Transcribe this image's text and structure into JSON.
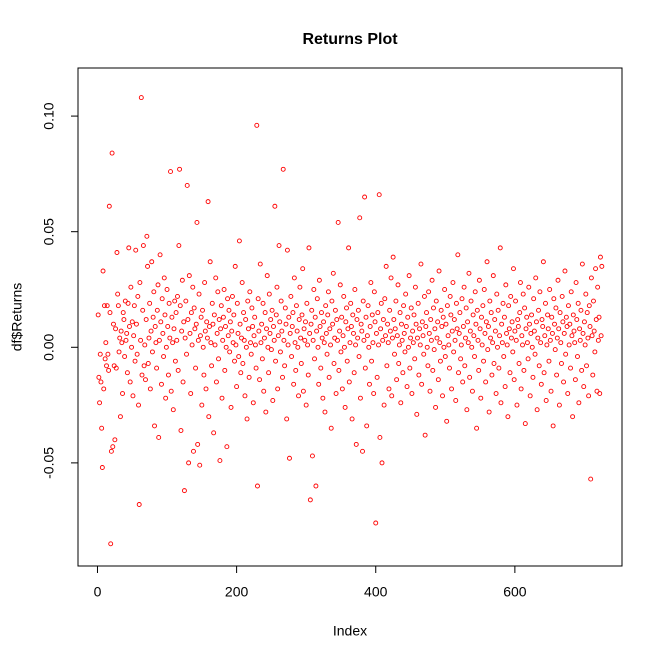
{
  "chart_data": {
    "type": "scatter",
    "title": "Returns Plot",
    "x_label": "Index",
    "y_label": "df$Returns",
    "color": "#ff0000",
    "xlim": [
      -28,
      754
    ],
    "ylim": [
      -0.0946,
      0.1208
    ],
    "xticks": [
      0,
      200,
      400,
      600
    ],
    "yticks": [
      {
        "value": -0.05,
        "label": "-0.05"
      },
      {
        "value": 0,
        "label": "0.00"
      },
      {
        "value": 0.05,
        "label": "0.05"
      },
      {
        "value": 0.1,
        "label": "0.10"
      }
    ],
    "values": [
      0.014,
      -0.013,
      -0.024,
      -0.003,
      -0.015,
      -0.035,
      -0.052,
      0.033,
      -0.018,
      0.018,
      -0.005,
      0.002,
      -0.008,
      0.018,
      -0.003,
      -0.01,
      0.061,
      0.015,
      -0.085,
      -0.045,
      0.084,
      -0.043,
      0.01,
      -0.008,
      -0.04,
      0.008,
      -0.009,
      0.041,
      0.023,
      0.018,
      -0.002,
      0.004,
      -0.03,
      0.007,
      0.002,
      -0.02,
      0.015,
      0.012,
      -0.004,
      0.02,
      0.003,
      0.006,
      -0.011,
      0.019,
      0.043,
      0.009,
      -0.015,
      0.026,
      0.0,
      0.011,
      -0.021,
      0.005,
      0.018,
      -0.006,
      0.042,
      0.01,
      -0.003,
      0.022,
      -0.025,
      -0.068,
      0.028,
      0.003,
      0.108,
      -0.012,
      0.016,
      0.044,
      -0.008,
      0.001,
      -0.014,
      0.012,
      0.048,
      0.035,
      -0.007,
      0.004,
      0.019,
      -0.018,
      0.007,
      0.037,
      -0.002,
      0.013,
      0.024,
      -0.034,
      0.009,
      0.002,
      -0.009,
      0.016,
      0.027,
      -0.039,
      0.003,
      0.04,
      0.011,
      -0.016,
      0.021,
      0.006,
      -0.004,
      0.03,
      0.014,
      -0.022,
      0.0,
      0.025,
      0.009,
      -0.012,
      0.019,
      0.004,
      0.076,
      -0.019,
      0.013,
      0.002,
      -0.027,
      0.008,
      0.02,
      -0.006,
      0.015,
      0.003,
      0.022,
      -0.01,
      0.044,
      0.077,
      0.018,
      -0.036,
      0.007,
      0.029,
      -0.015,
      0.011,
      -0.062,
      0.004,
      0.02,
      -0.003,
      0.07,
      0.012,
      -0.05,
      0.031,
      0.006,
      -0.02,
      0.015,
      0.001,
      0.026,
      -0.045,
      0.017,
      0.008,
      -0.009,
      0.01,
      0.054,
      -0.042,
      0.003,
      0.023,
      -0.051,
      0.005,
      0.013,
      -0.025,
      0.016,
      0.0,
      -0.012,
      0.028,
      0.007,
      -0.018,
      0.011,
      0.004,
      0.063,
      -0.03,
      0.009,
      0.037,
      0.002,
      -0.008,
      0.019,
      0.01,
      -0.037,
      0.014,
      0.001,
      0.03,
      -0.015,
      0.006,
      0.024,
      -0.005,
      0.012,
      -0.049,
      0.008,
      0.018,
      -0.022,
      0.003,
      0.013,
      0.025,
      -0.01,
      0.009,
      0.0,
      -0.043,
      0.021,
      0.005,
      0.016,
      -0.002,
      0.011,
      -0.026,
      0.007,
      0.022,
      0.002,
      0.014,
      -0.006,
      0.035,
      0.001,
      -0.017,
      0.019,
      0.006,
      -0.004,
      0.046,
      0.01,
      -0.011,
      0.004,
      0.028,
      -0.007,
      0.015,
      0.003,
      -0.021,
      0.012,
      0.0,
      -0.031,
      0.02,
      0.008,
      -0.013,
      0.024,
      0.002,
      -0.003,
      0.017,
      0.009,
      -0.024,
      0.005,
      0.013,
      0.001,
      -0.009,
      0.096,
      -0.06,
      0.021,
      0.007,
      -0.014,
      0.036,
      0.002,
      0.01,
      -0.005,
      0.019,
      -0.019,
      0.004,
      0.015,
      -0.028,
      0.008,
      0.031,
      0.0,
      -0.011,
      0.023,
      0.006,
      0.012,
      -0.001,
      0.016,
      -0.023,
      0.009,
      0.003,
      0.061,
      -0.006,
      0.014,
      0.026,
      -0.018,
      0.005,
      0.044,
      0.011,
      -0.002,
      0.02,
      0.007,
      -0.013,
      0.077,
      0.003,
      -0.008,
      0.017,
      0.01,
      -0.031,
      0.042,
      0.001,
      0.013,
      -0.048,
      0.006,
      0.022,
      -0.004,
      0.009,
      0.015,
      -0.016,
      0.03,
      0.002,
      -0.01,
      0.018,
      0.007,
      0.0,
      -0.021,
      0.012,
      0.026,
      0.004,
      -0.007,
      0.014,
      0.034,
      -0.019,
      0.008,
      0.003,
      0.011,
      -0.025,
      0.019,
      0.001,
      -0.012,
      0.043,
      0.006,
      -0.066,
      0.01,
      0.016,
      -0.047,
      0.003,
      0.025,
      -0.005,
      0.013,
      -0.06,
      0.007,
      0.021,
      0.0,
      -0.016,
      0.029,
      0.009,
      -0.009,
      0.015,
      0.004,
      -0.022,
      0.011,
      0.002,
      -0.028,
      0.018,
      0.006,
      -0.003,
      0.014,
      0.024,
      -0.013,
      0.008,
      0.001,
      -0.035,
      0.02,
      0.01,
      0.032,
      -0.007,
      0.004,
      0.016,
      -0.02,
      0.012,
      0.003,
      0.054,
      -0.01,
      0.007,
      0.027,
      -0.002,
      0.013,
      -0.018,
      0.005,
      0.022,
      0.0,
      -0.026,
      0.011,
      0.017,
      -0.006,
      0.008,
      0.043,
      -0.015,
      0.002,
      0.019,
      0.009,
      -0.031,
      0.014,
      0.006,
      -0.011,
      0.025,
      0.001,
      -0.042,
      0.012,
      0.004,
      0.016,
      -0.004,
      0.056,
      -0.022,
      0.01,
      0.007,
      -0.045,
      0.02,
      0.003,
      0.065,
      -0.009,
      0.013,
      -0.034,
      0.005,
      0.018,
      0.0,
      -0.016,
      0.009,
      0.028,
      -0.006,
      0.014,
      0.002,
      -0.02,
      0.024,
      0.011,
      -0.076,
      0.006,
      -0.013,
      0.015,
      0.001,
      0.066,
      -0.039,
      0.008,
      0.019,
      -0.05,
      0.003,
      0.012,
      -0.025,
      0.021,
      0.005,
      0.035,
      -0.008,
      0.01,
      0.002,
      -0.018,
      0.016,
      0.007,
      0.03,
      -0.021,
      0.004,
      0.039,
      0.012,
      -0.003,
      0.008,
      0.02,
      -0.014,
      0.005,
      0.027,
      -0.007,
      0.001,
      0.015,
      -0.024,
      0.01,
      0.003,
      -0.011,
      0.018,
      0.006,
      -0.002,
      0.023,
      0.009,
      -0.017,
      0.013,
      0.0,
      0.031,
      -0.009,
      0.004,
      0.017,
      -0.02,
      0.007,
      0.002,
      0.014,
      -0.005,
      0.026,
      0.01,
      -0.029,
      0.004,
      0.019,
      -0.012,
      0.008,
      0.001,
      0.036,
      -0.016,
      0.011,
      0.005,
      -0.003,
      0.022,
      -0.038,
      0.009,
      0.015,
      0.0,
      -0.008,
      0.024,
      0.006,
      -0.019,
      0.012,
      0.003,
      0.029,
      -0.01,
      0.017,
      -0.001,
      0.008,
      -0.026,
      0.02,
      0.004,
      0.011,
      -0.014,
      0.033,
      0.002,
      -0.006,
      0.016,
      0.009,
      -0.021,
      0.013,
      0.0,
      0.025,
      -0.004,
      0.01,
      -0.032,
      0.018,
      0.005,
      0.001,
      -0.009,
      0.022,
      0.014,
      -0.018,
      0.007,
      0.028,
      -0.002,
      0.012,
      0.003,
      -0.023,
      0.019,
      0.008,
      0.04,
      -0.011,
      0.006,
      0.015,
      -0.005,
      0.001,
      0.021,
      -0.015,
      0.009,
      0.026,
      -0.008,
      0.004,
      0.017,
      -0.027,
      0.011,
      0.002,
      0.032,
      -0.013,
      0.007,
      0.02,
      0.0,
      -0.019,
      0.014,
      0.005,
      -0.004,
      0.024,
      0.01,
      -0.035,
      0.016,
      0.003,
      -0.01,
      0.029,
      0.008,
      -0.022,
      0.013,
      0.001,
      0.018,
      -0.006,
      0.025,
      0.006,
      -0.015,
      0.011,
      0.037,
      -0.001,
      0.009,
      -0.028,
      0.02,
      0.004,
      0.015,
      -0.012,
      0.002,
      0.031,
      -0.007,
      0.012,
      0.007,
      -0.02,
      0.023,
      0.0,
      0.016,
      -0.009,
      0.005,
      0.043,
      -0.024,
      0.01,
      0.002,
      0.019,
      -0.004,
      0.013,
      -0.017,
      0.027,
      0.006,
      0.001,
      -0.03,
      0.018,
      0.008,
      -0.011,
      0.022,
      0.004,
      0.011,
      -0.002,
      0.034,
      -0.014,
      0.007,
      0.02,
      0.003,
      -0.025,
      0.012,
      0.009,
      -0.007,
      0.015,
      0.028,
      -0.018,
      0.005,
      0.001,
      0.023,
      -0.01,
      0.017,
      -0.033,
      0.008,
      0.013,
      0.002,
      -0.005,
      0.026,
      0.01,
      -0.021,
      0.006,
      0.014,
      0.0,
      -0.013,
      0.021,
      0.007,
      -0.003,
      0.03,
      0.011,
      -0.027,
      0.004,
      0.016,
      -0.008,
      0.024,
      0.002,
      -0.016,
      0.012,
      0.009,
      0.037,
      -0.011,
      0.005,
      0.019,
      -0.023,
      0.001,
      0.014,
      0.008,
      -0.006,
      0.025,
      0.003,
      -0.019,
      0.013,
      0.006,
      -0.034,
      0.021,
      0.01,
      -0.001,
      0.017,
      -0.012,
      0.004,
      0.029,
      0.008,
      -0.025,
      0.015,
      0.002,
      -0.007,
      0.022,
      0.011,
      -0.015,
      0.006,
      0.033,
      -0.003,
      0.013,
      0.009,
      -0.02,
      0.018,
      0.001,
      0.01,
      -0.009,
      0.024,
      0.005,
      -0.03,
      0.014,
      0.007,
      0.002,
      -0.014,
      0.028,
      0.012,
      -0.004,
      0.019,
      -0.024,
      0.008,
      0.003,
      0.016,
      -0.01,
      0.036,
      0.006,
      -0.017,
      0.011,
      0.001,
      0.023,
      -0.008,
      0.015,
      0.004,
      -0.021,
      0.018,
      0.009,
      -0.057,
      0.03,
      0.005,
      -0.012,
      0.02,
      0.007,
      -0.002,
      0.034,
      0.012,
      -0.019,
      0.026,
      0.003,
      0.013,
      -0.02,
      0.039,
      0.005,
      0.035
    ]
  }
}
